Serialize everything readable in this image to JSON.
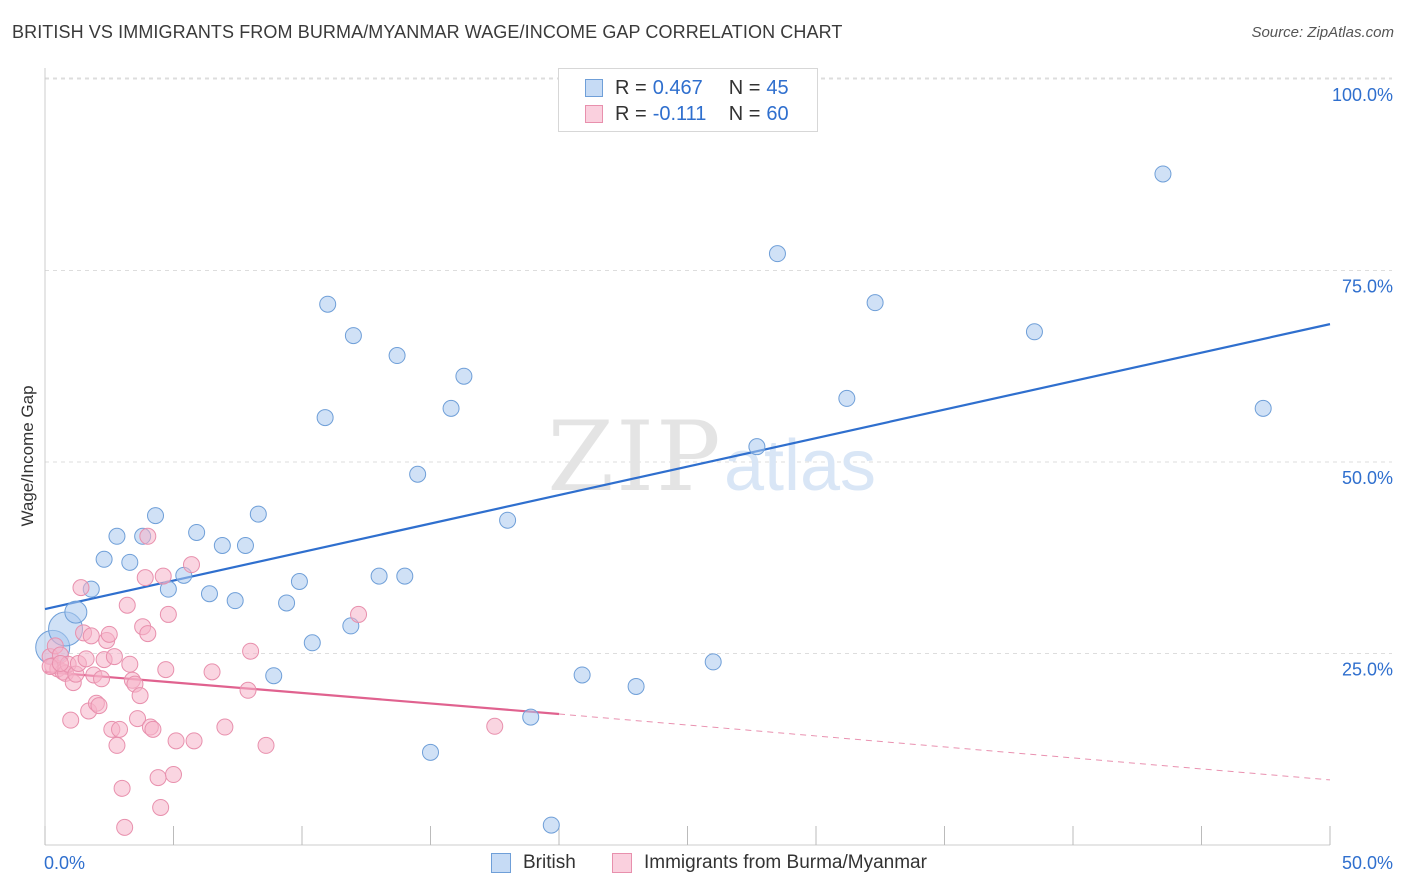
{
  "header": {
    "title": "BRITISH VS IMMIGRANTS FROM BURMA/MYANMAR WAGE/INCOME GAP CORRELATION CHART",
    "source": "Source: ZipAtlas.com"
  },
  "watermark": {
    "zip": "ZIP",
    "atlas": "atlas"
  },
  "legend": {
    "rows": [
      {
        "r_label": "R = ",
        "r_value": "0.467",
        "n_label": "N = ",
        "n_value": "45",
        "color": "#a9c8ef"
      },
      {
        "r_label": "R = ",
        "r_value": "-0.111",
        "n_label": "N = ",
        "n_value": "60",
        "color": "#f5b3c8"
      }
    ]
  },
  "bottom_legend": {
    "british": "British",
    "burma": "Immigrants from Burma/Myanmar"
  },
  "colors": {
    "british_fill": "#a9c8ef",
    "british_stroke": "#6f9fd8",
    "british_line": "#2f6fce",
    "burma_fill": "#f5b3c8",
    "burma_stroke": "#e890ad",
    "burma_line": "#e0628f",
    "axis_text": "#2f6fce",
    "grid": "#dddddd"
  },
  "chart_data": {
    "type": "scatter",
    "title": "BRITISH VS IMMIGRANTS FROM BURMA/MYANMAR WAGE/INCOME GAP CORRELATION CHART",
    "xlabel": "",
    "ylabel": "Wage/Income Gap",
    "xlim": [
      0,
      50
    ],
    "ylim": [
      0,
      102
    ],
    "x_tick_labels": [
      "0.0%",
      "50.0%"
    ],
    "y_tick_labels": [
      "25.0%",
      "50.0%",
      "75.0%",
      "100.0%"
    ],
    "y_ticks": [
      25,
      50,
      75,
      100
    ],
    "x_ticks": [
      0,
      5,
      10,
      15,
      20,
      25,
      30,
      35,
      40,
      45,
      50
    ],
    "grid": true,
    "legend_position": "top-center",
    "series": [
      {
        "name": "British",
        "points": [
          [
            0.3,
            25.8,
            3
          ],
          [
            0.8,
            28.2,
            3
          ],
          [
            1.2,
            30.4,
            2
          ],
          [
            1.8,
            33.4,
            1
          ],
          [
            2.3,
            37.3,
            1
          ],
          [
            2.8,
            40.3,
            1
          ],
          [
            3.3,
            36.9,
            1
          ],
          [
            3.8,
            40.3,
            1
          ],
          [
            4.3,
            43.0,
            1
          ],
          [
            4.8,
            33.4,
            1
          ],
          [
            5.4,
            35.2,
            1
          ],
          [
            5.9,
            40.8,
            1
          ],
          [
            6.4,
            32.8,
            1
          ],
          [
            6.9,
            39.1,
            1
          ],
          [
            7.4,
            31.9,
            1
          ],
          [
            7.8,
            39.1,
            1
          ],
          [
            8.3,
            43.2,
            1
          ],
          [
            8.9,
            22.1,
            1
          ],
          [
            9.4,
            31.6,
            1
          ],
          [
            9.9,
            34.4,
            1
          ],
          [
            10.4,
            26.4,
            1
          ],
          [
            10.9,
            55.8,
            1
          ],
          [
            11.0,
            70.6,
            1
          ],
          [
            12.0,
            66.5,
            1
          ],
          [
            11.9,
            28.6,
            1
          ],
          [
            13.0,
            35.1,
            1
          ],
          [
            13.7,
            63.9,
            1
          ],
          [
            14.0,
            35.1,
            1
          ],
          [
            14.5,
            48.4,
            1
          ],
          [
            15.0,
            12.1,
            1
          ],
          [
            15.8,
            57.0,
            1
          ],
          [
            16.3,
            61.2,
            1
          ],
          [
            18.0,
            42.4,
            1
          ],
          [
            18.9,
            16.7,
            1
          ],
          [
            19.7,
            2.6,
            1
          ],
          [
            20.9,
            22.2,
            1
          ],
          [
            23.0,
            20.7,
            1
          ],
          [
            26.0,
            23.9,
            1
          ],
          [
            27.7,
            52.0,
            1
          ],
          [
            28.5,
            77.2,
            1
          ],
          [
            31.2,
            58.3,
            1
          ],
          [
            32.3,
            70.8,
            1
          ],
          [
            38.5,
            67.0,
            1
          ],
          [
            43.5,
            87.6,
            1
          ],
          [
            47.4,
            57.0,
            1
          ]
        ]
      },
      {
        "name": "Immigrants from Burma/Myanmar",
        "points": [
          [
            0.2,
            24.6,
            1
          ],
          [
            0.3,
            23.4,
            1
          ],
          [
            0.4,
            26.0,
            1
          ],
          [
            0.5,
            23.0,
            1
          ],
          [
            0.6,
            24.8,
            1
          ],
          [
            0.7,
            22.6,
            1
          ],
          [
            0.8,
            22.4,
            1
          ],
          [
            0.9,
            23.6,
            1
          ],
          [
            1.0,
            16.3,
            1
          ],
          [
            1.1,
            21.2,
            1
          ],
          [
            1.2,
            22.3,
            1
          ],
          [
            1.3,
            23.7,
            1
          ],
          [
            1.4,
            33.6,
            1
          ],
          [
            1.5,
            27.7,
            1
          ],
          [
            1.6,
            24.3,
            1
          ],
          [
            1.7,
            17.5,
            1
          ],
          [
            1.8,
            27.3,
            1
          ],
          [
            1.9,
            22.2,
            1
          ],
          [
            2.0,
            18.5,
            1
          ],
          [
            2.1,
            18.2,
            1
          ],
          [
            2.2,
            21.7,
            1
          ],
          [
            2.3,
            24.2,
            1
          ],
          [
            2.4,
            26.7,
            1
          ],
          [
            2.5,
            27.5,
            1
          ],
          [
            2.6,
            15.1,
            1
          ],
          [
            2.7,
            24.6,
            1
          ],
          [
            2.8,
            13.0,
            1
          ],
          [
            2.9,
            15.1,
            1
          ],
          [
            3.0,
            7.4,
            1
          ],
          [
            3.1,
            2.3,
            1
          ],
          [
            3.2,
            31.3,
            1
          ],
          [
            3.3,
            23.6,
            1
          ],
          [
            3.4,
            21.5,
            1
          ],
          [
            3.5,
            21.0,
            1
          ],
          [
            3.6,
            16.5,
            1
          ],
          [
            3.7,
            19.5,
            1
          ],
          [
            3.8,
            28.5,
            1
          ],
          [
            3.9,
            34.9,
            1
          ],
          [
            4.0,
            27.6,
            1
          ],
          [
            4.1,
            15.4,
            1
          ],
          [
            4.2,
            15.1,
            1
          ],
          [
            4.4,
            8.8,
            1
          ],
          [
            4.5,
            4.9,
            1
          ],
          [
            4.6,
            35.1,
            1
          ],
          [
            4.7,
            22.9,
            1
          ],
          [
            4.8,
            30.1,
            1
          ],
          [
            5.0,
            9.2,
            1
          ],
          [
            5.1,
            13.6,
            1
          ],
          [
            5.7,
            36.6,
            1
          ],
          [
            5.8,
            13.6,
            1
          ],
          [
            4.0,
            40.3,
            1
          ],
          [
            6.5,
            22.6,
            1
          ],
          [
            7.0,
            15.4,
            1
          ],
          [
            7.9,
            20.2,
            1
          ],
          [
            8.0,
            25.3,
            1
          ],
          [
            8.6,
            13.0,
            1
          ],
          [
            12.2,
            30.1,
            1
          ],
          [
            17.5,
            15.5,
            1
          ],
          [
            0.2,
            23.3,
            1
          ],
          [
            0.6,
            23.7,
            1
          ]
        ]
      }
    ],
    "trendlines": [
      {
        "series": "British",
        "x": [
          0,
          50
        ],
        "y": [
          30.8,
          68.0
        ]
      },
      {
        "series": "Immigrants from Burma/Myanmar",
        "x": [
          0,
          20
        ],
        "y": [
          22.6,
          17.1
        ],
        "dashed_extension_to": [
          50,
          8.5
        ]
      }
    ]
  }
}
